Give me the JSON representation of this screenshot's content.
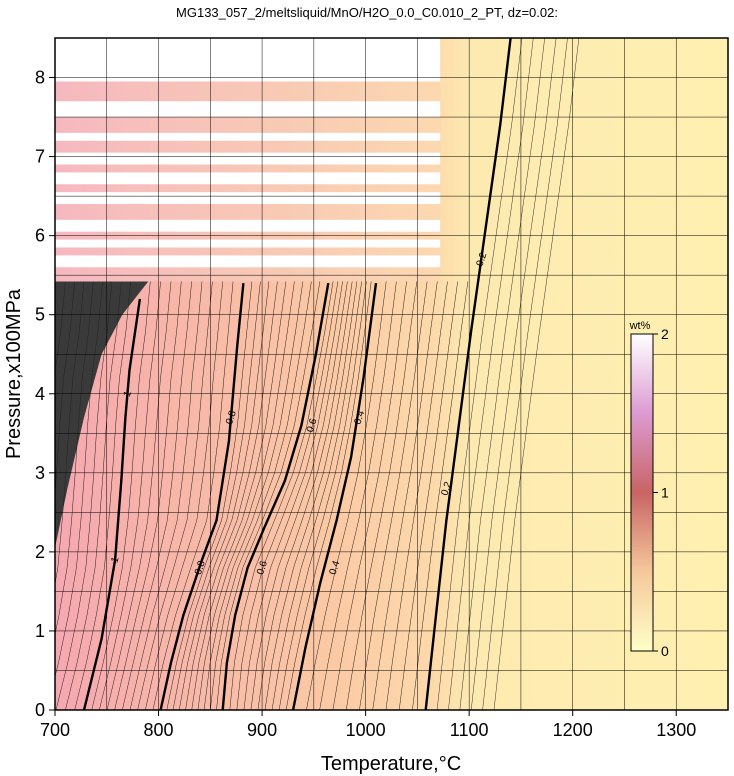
{
  "chart_data": {
    "type": "heatmap",
    "title": "MG133_057_2/meltsliquid/MnO/H2O_0.0_C0.010_2_PT, dz=0.02:",
    "xlabel": "Temperature,°C",
    "ylabel": "Pressure,x100MPa",
    "xlim": [
      700,
      1350
    ],
    "ylim": [
      0,
      8.5
    ],
    "x_ticks": [
      700,
      800,
      900,
      1000,
      1100,
      1200,
      1300
    ],
    "y_ticks": [
      0,
      1,
      2,
      3,
      4,
      5,
      6,
      7,
      8
    ],
    "grid": true,
    "colorbar": {
      "unit": "wt%",
      "range": [
        0,
        2
      ],
      "ticks": [
        0,
        1,
        2
      ],
      "colors": [
        "#ffffc8",
        "#f5c89c",
        "#c86464",
        "#dc9ad2",
        "#ffffff"
      ]
    },
    "contours_major": [
      {
        "value": 1,
        "label": "1",
        "points": [
          [
            728,
            0
          ],
          [
            745,
            0.9
          ],
          [
            758,
            1.9
          ],
          [
            764,
            2.9
          ],
          [
            768,
            3.7
          ],
          [
            772,
            4.3
          ],
          [
            782,
            5.2
          ]
        ]
      },
      {
        "value": 0.8,
        "label": "0.8",
        "points": [
          [
            802,
            0
          ],
          [
            812,
            0.6
          ],
          [
            824,
            1.2
          ],
          [
            842,
            1.9
          ],
          [
            856,
            2.4
          ],
          [
            868,
            3.4
          ],
          [
            876,
            4.6
          ],
          [
            882,
            5.4
          ]
        ]
      },
      {
        "value": 0.6,
        "label": "0.6",
        "points": [
          [
            862,
            0
          ],
          [
            866,
            0.6
          ],
          [
            874,
            1.2
          ],
          [
            886,
            1.8
          ],
          [
            902,
            2.3
          ],
          [
            922,
            2.9
          ],
          [
            938,
            3.6
          ],
          [
            952,
            4.5
          ],
          [
            964,
            5.4
          ]
        ]
      },
      {
        "value": 0.4,
        "label": "0.4",
        "points": [
          [
            930,
            0
          ],
          [
            942,
            0.8
          ],
          [
            956,
            1.6
          ],
          [
            972,
            2.4
          ],
          [
            986,
            3.2
          ],
          [
            998,
            4.2
          ],
          [
            1010,
            5.4
          ]
        ]
      },
      {
        "value": 0.2,
        "label": "0.2",
        "points": [
          [
            1058,
            0
          ],
          [
            1068,
            1.2
          ],
          [
            1078,
            2.4
          ],
          [
            1090,
            3.6
          ],
          [
            1102,
            4.8
          ],
          [
            1116,
            6.1
          ],
          [
            1130,
            7.4
          ],
          [
            1140,
            8.5
          ]
        ]
      }
    ],
    "contour_labels": [
      {
        "text": "1",
        "at": [
          758,
          1.9
        ]
      },
      {
        "text": "1",
        "at": [
          770,
          4.0
        ]
      },
      {
        "text": "0.8",
        "at": [
          840,
          1.8
        ]
      },
      {
        "text": "0.8",
        "at": [
          870,
          3.7
        ]
      },
      {
        "text": "0.6",
        "at": [
          900,
          1.8
        ]
      },
      {
        "text": "0.6",
        "at": [
          948,
          3.6
        ]
      },
      {
        "text": "0.4",
        "at": [
          970,
          1.8
        ]
      },
      {
        "text": "0.4",
        "at": [
          994,
          3.7
        ]
      },
      {
        "text": "0.2",
        "at": [
          1078,
          2.8
        ]
      },
      {
        "text": "0.2",
        "at": [
          1112,
          5.7
        ]
      }
    ],
    "blank_bands": [
      [
        5.6,
        5.75
      ],
      [
        5.85,
        5.95
      ],
      [
        6.05,
        6.2
      ],
      [
        6.4,
        6.55
      ],
      [
        6.65,
        6.8
      ],
      [
        6.9,
        7.05
      ],
      [
        7.2,
        7.3
      ],
      [
        7.5,
        7.7
      ],
      [
        7.95,
        8.5
      ]
    ],
    "blank_region_xlim": [
      700,
      1072
    ],
    "blank_region_ymin": 5.42
  }
}
